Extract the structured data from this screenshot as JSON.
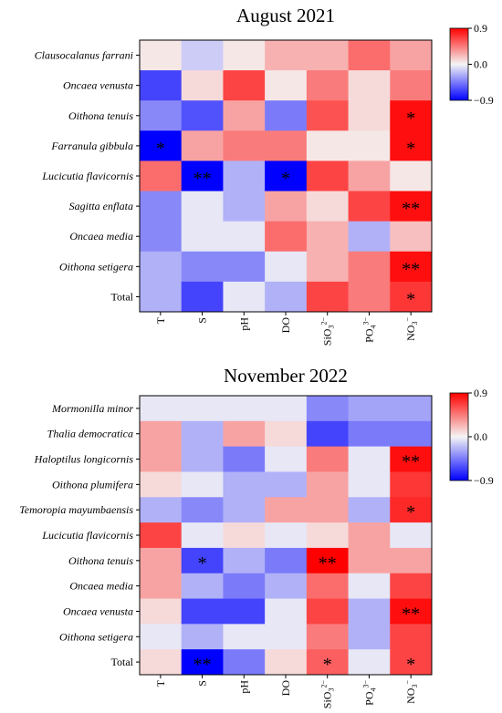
{
  "chart_data": [
    {
      "type": "heatmap",
      "title": "August 2021",
      "rows": [
        "Clausocalanus farrani",
        "Oncaea venusta",
        "Oithona tenuis",
        "Farranula gibbula",
        "Lucicutia flavicornis",
        "Sagitta enflata",
        "Oncaea media",
        "Oithona setigera",
        "Total"
      ],
      "row_italic": [
        true,
        true,
        true,
        true,
        true,
        true,
        true,
        true,
        false
      ],
      "columns": [
        {
          "base": "T",
          "sub": "",
          "sup": ""
        },
        {
          "base": "S",
          "sub": "",
          "sup": ""
        },
        {
          "base": "pH",
          "sub": "",
          "sup": ""
        },
        {
          "base": "DO",
          "sub": "",
          "sup": ""
        },
        {
          "base": "SiO",
          "sub": "3",
          "sup": "2−"
        },
        {
          "base": "PO",
          "sub": "4",
          "sup": "3−"
        },
        {
          "base": "NO",
          "sub": "3",
          "sup": "−"
        }
      ],
      "values": [
        [
          0.05,
          -0.15,
          0.05,
          0.25,
          0.25,
          0.5,
          0.3
        ],
        [
          -0.65,
          0.1,
          0.65,
          0.05,
          0.45,
          0.1,
          0.45
        ],
        [
          -0.4,
          -0.6,
          0.3,
          -0.45,
          0.6,
          0.1,
          0.85
        ],
        [
          -0.9,
          0.3,
          0.45,
          0.45,
          0.05,
          0.05,
          0.85
        ],
        [
          0.5,
          -0.9,
          -0.25,
          -0.9,
          0.65,
          0.3,
          0.05
        ],
        [
          -0.4,
          -0.05,
          -0.25,
          0.3,
          0.1,
          0.65,
          0.85
        ],
        [
          -0.4,
          -0.05,
          -0.05,
          0.5,
          0.25,
          -0.25,
          0.2
        ],
        [
          -0.25,
          -0.4,
          -0.4,
          -0.05,
          0.25,
          0.45,
          0.85
        ],
        [
          -0.25,
          -0.65,
          -0.05,
          -0.25,
          0.65,
          0.45,
          0.7
        ]
      ],
      "significance": [
        [
          "",
          "",
          "",
          "",
          "",
          "",
          ""
        ],
        [
          "",
          "",
          "",
          "",
          "",
          "",
          ""
        ],
        [
          "",
          "",
          "",
          "",
          "",
          "",
          "*"
        ],
        [
          "*",
          "",
          "",
          "",
          "",
          "",
          "*"
        ],
        [
          "",
          "**",
          "",
          "*",
          "",
          "",
          ""
        ],
        [
          "",
          "",
          "",
          "",
          "",
          "",
          "**"
        ],
        [
          "",
          "",
          "",
          "",
          "",
          "",
          ""
        ],
        [
          "",
          "",
          "",
          "",
          "",
          "",
          "**"
        ],
        [
          "",
          "",
          "",
          "",
          "",
          "",
          "*"
        ]
      ],
      "colorbar": {
        "min": -0.9,
        "max": 0.9,
        "ticks": [
          0.9,
          0.0,
          -0.9
        ],
        "tick_labels": [
          "0.9",
          "0.0",
          "−0.9"
        ],
        "low_color": "#0000ff",
        "mid_color": "#f5f5f5",
        "high_color": "#ff0000"
      }
    },
    {
      "type": "heatmap",
      "title": "November 2022",
      "rows": [
        "Mormonilla minor",
        "Thalia democratica",
        "Haloptilus longicornis",
        "Oithona plumifera",
        "Temoropia mayumbaensis",
        "Lucicutia flavicornis",
        "Oithona tenuis",
        "Oncaea media",
        "Oncaea venusta",
        "Oithona setigera",
        "Total"
      ],
      "row_italic": [
        true,
        true,
        true,
        true,
        true,
        true,
        true,
        true,
        true,
        true,
        false
      ],
      "columns": [
        {
          "base": "T",
          "sub": "",
          "sup": ""
        },
        {
          "base": "S",
          "sub": "",
          "sup": ""
        },
        {
          "base": "pH",
          "sub": "",
          "sup": ""
        },
        {
          "base": "DO",
          "sub": "",
          "sup": ""
        },
        {
          "base": "SiO",
          "sub": "3",
          "sup": "2−"
        },
        {
          "base": "PO",
          "sub": "4",
          "sup": "3−"
        },
        {
          "base": "NO",
          "sub": "3",
          "sup": "−"
        }
      ],
      "values": [
        [
          -0.05,
          -0.05,
          -0.05,
          -0.05,
          -0.4,
          -0.3,
          -0.3
        ],
        [
          0.3,
          -0.25,
          0.3,
          0.1,
          -0.65,
          -0.45,
          -0.45
        ],
        [
          0.3,
          -0.25,
          -0.45,
          -0.05,
          0.45,
          -0.05,
          0.85
        ],
        [
          0.1,
          -0.05,
          -0.25,
          -0.25,
          0.3,
          -0.05,
          0.7
        ],
        [
          -0.25,
          -0.4,
          -0.25,
          0.3,
          0.3,
          -0.25,
          0.75
        ],
        [
          0.65,
          -0.05,
          0.1,
          -0.05,
          0.1,
          0.3,
          -0.05
        ],
        [
          0.3,
          -0.65,
          -0.25,
          -0.45,
          0.9,
          0.3,
          0.3
        ],
        [
          0.3,
          -0.25,
          -0.45,
          -0.25,
          0.5,
          -0.05,
          0.65
        ],
        [
          0.1,
          -0.65,
          -0.65,
          -0.05,
          0.65,
          -0.25,
          0.85
        ],
        [
          -0.05,
          -0.25,
          -0.05,
          -0.05,
          0.45,
          -0.25,
          0.65
        ],
        [
          0.1,
          -0.9,
          -0.45,
          0.1,
          0.55,
          -0.05,
          0.65
        ]
      ],
      "significance": [
        [
          "",
          "",
          "",
          "",
          "",
          "",
          ""
        ],
        [
          "",
          "",
          "",
          "",
          "",
          "",
          ""
        ],
        [
          "",
          "",
          "",
          "",
          "",
          "",
          "**"
        ],
        [
          "",
          "",
          "",
          "",
          "",
          "",
          ""
        ],
        [
          "",
          "",
          "",
          "",
          "",
          "",
          "*"
        ],
        [
          "",
          "",
          "",
          "",
          "",
          "",
          ""
        ],
        [
          "",
          "*",
          "",
          "",
          "**",
          "",
          ""
        ],
        [
          "",
          "",
          "",
          "",
          "",
          "",
          ""
        ],
        [
          "",
          "",
          "",
          "",
          "",
          "",
          "**"
        ],
        [
          "",
          "",
          "",
          "",
          "",
          "",
          ""
        ],
        [
          "",
          "**",
          "",
          "",
          "*",
          "",
          "*"
        ]
      ],
      "colorbar": {
        "min": -0.9,
        "max": 0.9,
        "ticks": [
          0.9,
          0.0,
          -0.9
        ],
        "tick_labels": [
          "0.9",
          "0.0",
          "−0.9"
        ],
        "low_color": "#0000ff",
        "mid_color": "#f5f5f5",
        "high_color": "#ff0000"
      }
    }
  ]
}
